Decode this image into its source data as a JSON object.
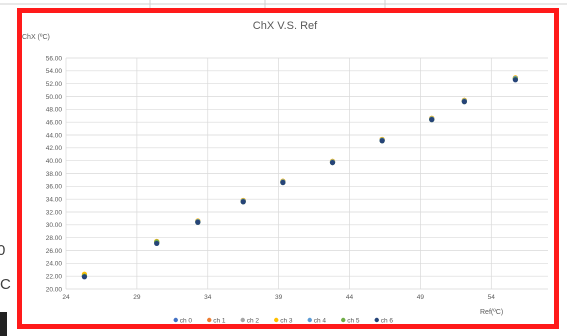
{
  "background": {
    "fragment_top": "0",
    "fragment_bottom": "°C"
  },
  "colors": {
    "frame": "#ff1a1a",
    "grid": "#d9d9d9",
    "text": "#595959",
    "series": [
      "#4472c4",
      "#ed7d31",
      "#a5a5a5",
      "#ffc000",
      "#5b9bd5",
      "#70ad47",
      "#264478"
    ]
  },
  "chart_data": {
    "type": "scatter",
    "title": "ChX V.S. Ref",
    "xlabel": "Ref(ºC)",
    "ylabel": "ChX (ºC)",
    "xlim": [
      24,
      58
    ],
    "ylim": [
      20,
      56
    ],
    "x_ticks": [
      24,
      29,
      34,
      39,
      44,
      49,
      54
    ],
    "y_ticks": [
      "20.00",
      "22.00",
      "24.00",
      "26.00",
      "28.00",
      "30.00",
      "32.00",
      "34.00",
      "36.00",
      "38.00",
      "40.00",
      "42.00",
      "44.00",
      "46.00",
      "48.00",
      "50.00",
      "52.00",
      "54.00",
      "56.00"
    ],
    "legend_position": "bottom",
    "grid": true,
    "series": [
      {
        "name": "ch 0",
        "x": [
          25.3,
          30.4,
          33.3,
          36.5,
          39.3,
          42.8,
          46.3,
          49.8,
          52.1,
          55.7
        ],
        "y": [
          22.0,
          27.3,
          30.5,
          33.7,
          36.7,
          39.8,
          43.2,
          46.5,
          49.3,
          52.8
        ]
      },
      {
        "name": "ch 1",
        "x": [
          25.3,
          30.4,
          33.3,
          36.5,
          39.3,
          42.8,
          46.3,
          49.8,
          52.1,
          55.7
        ],
        "y": [
          22.1,
          27.4,
          30.6,
          33.8,
          36.8,
          39.9,
          43.3,
          46.6,
          49.4,
          52.9
        ]
      },
      {
        "name": "ch 2",
        "x": [
          25.3,
          30.4,
          33.3,
          36.5,
          39.3,
          42.8,
          46.3,
          49.8,
          52.1,
          55.7
        ],
        "y": [
          22.0,
          27.2,
          30.5,
          33.7,
          36.6,
          39.8,
          43.2,
          46.5,
          49.3,
          52.8
        ]
      },
      {
        "name": "ch 3",
        "x": [
          25.3,
          30.4,
          33.3,
          36.5,
          39.3,
          42.8,
          46.3,
          49.8,
          52.1,
          55.7
        ],
        "y": [
          22.3,
          27.4,
          30.6,
          33.8,
          36.8,
          39.9,
          43.3,
          46.6,
          49.4,
          52.9
        ]
      },
      {
        "name": "ch 4",
        "x": [
          25.3,
          30.4,
          33.3,
          36.5,
          39.3,
          42.8,
          46.3,
          49.8,
          52.1,
          55.7
        ],
        "y": [
          22.0,
          27.3,
          30.5,
          33.7,
          36.7,
          39.8,
          43.2,
          46.5,
          49.3,
          52.8
        ]
      },
      {
        "name": "ch 5",
        "x": [
          25.3,
          30.4,
          33.3,
          36.5,
          39.3,
          42.8,
          46.3,
          49.8,
          52.1,
          55.7
        ],
        "y": [
          22.0,
          27.3,
          30.4,
          33.6,
          36.6,
          39.7,
          43.1,
          46.4,
          49.2,
          52.7
        ]
      },
      {
        "name": "ch 6",
        "x": [
          25.3,
          30.4,
          33.3,
          36.5,
          39.3,
          42.8,
          46.3,
          49.8,
          52.1,
          55.7
        ],
        "y": [
          21.9,
          27.1,
          30.4,
          33.6,
          36.6,
          39.7,
          43.1,
          46.4,
          49.2,
          52.6
        ]
      }
    ]
  }
}
